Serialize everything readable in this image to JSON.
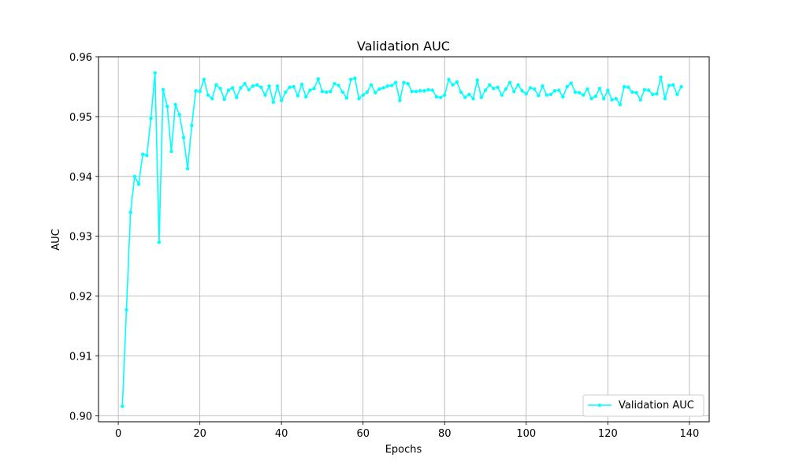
{
  "chart_data": {
    "type": "line",
    "title": "Validation AUC",
    "xlabel": "Epochs",
    "ylabel": "AUC",
    "xlim": [
      -4.85,
      144.85
    ],
    "ylim": [
      0.899,
      0.96
    ],
    "xticks": [
      0,
      20,
      40,
      60,
      80,
      100,
      120,
      140
    ],
    "yticks": [
      0.9,
      0.91,
      0.92,
      0.93,
      0.94,
      0.95,
      0.96
    ],
    "ytick_labels": [
      "0.90",
      "0.91",
      "0.92",
      "0.93",
      "0.94",
      "0.95",
      "0.96"
    ],
    "grid": true,
    "legend_position": "lower-right",
    "series": [
      {
        "name": "Validation AUC",
        "color": "#00ffff",
        "x": [
          1,
          2,
          3,
          4,
          5,
          6,
          7,
          8,
          9,
          10,
          11,
          12,
          13,
          14,
          15,
          16,
          17,
          18,
          19,
          20,
          21,
          22,
          23,
          24,
          25,
          26,
          27,
          28,
          29,
          30,
          31,
          32,
          33,
          34,
          35,
          36,
          37,
          38,
          39,
          40,
          41,
          42,
          43,
          44,
          45,
          46,
          47,
          48,
          49,
          50,
          51,
          52,
          53,
          54,
          55,
          56,
          57,
          58,
          59,
          60,
          61,
          62,
          63,
          64,
          65,
          66,
          67,
          68,
          69,
          70,
          71,
          72,
          73,
          74,
          75,
          76,
          77,
          78,
          79,
          80,
          81,
          82,
          83,
          84,
          85,
          86,
          87,
          88,
          89,
          90,
          91,
          92,
          93,
          94,
          95,
          96,
          97,
          98,
          99,
          100,
          101,
          102,
          103,
          104,
          105,
          106,
          107,
          108,
          109,
          110,
          111,
          112,
          113,
          114,
          115,
          116,
          117,
          118,
          119,
          120,
          121,
          122,
          123,
          124,
          125,
          126,
          127,
          128,
          129,
          130,
          131,
          132,
          133,
          134,
          135,
          136,
          137,
          138
        ],
        "values": [
          0.9016,
          0.9177,
          0.934,
          0.94,
          0.9387,
          0.9437,
          0.9435,
          0.9497,
          0.9573,
          0.929,
          0.9545,
          0.9517,
          0.9442,
          0.952,
          0.9503,
          0.9465,
          0.9413,
          0.9485,
          0.9543,
          0.9542,
          0.9562,
          0.9536,
          0.953,
          0.9553,
          0.9547,
          0.9529,
          0.9544,
          0.9548,
          0.9532,
          0.9548,
          0.9555,
          0.9545,
          0.9551,
          0.9553,
          0.9549,
          0.9536,
          0.9551,
          0.9524,
          0.9551,
          0.9527,
          0.9541,
          0.9549,
          0.955,
          0.9535,
          0.9554,
          0.9533,
          0.9544,
          0.9547,
          0.9563,
          0.9542,
          0.9541,
          0.9542,
          0.9555,
          0.9552,
          0.9541,
          0.9531,
          0.9562,
          0.9564,
          0.953,
          0.9536,
          0.9541,
          0.9553,
          0.954,
          0.9546,
          0.9548,
          0.9551,
          0.9552,
          0.9557,
          0.9527,
          0.9557,
          0.9555,
          0.9542,
          0.9542,
          0.9543,
          0.9543,
          0.9545,
          0.9544,
          0.9533,
          0.9532,
          0.9536,
          0.9562,
          0.9553,
          0.9558,
          0.9541,
          0.9532,
          0.9537,
          0.953,
          0.9561,
          0.9532,
          0.9544,
          0.9553,
          0.9547,
          0.9549,
          0.9536,
          0.9546,
          0.9557,
          0.9542,
          0.9553,
          0.9543,
          0.9538,
          0.9548,
          0.9546,
          0.9535,
          0.9551,
          0.9536,
          0.9537,
          0.9543,
          0.9544,
          0.9533,
          0.955,
          0.9556,
          0.9541,
          0.954,
          0.9536,
          0.9546,
          0.953,
          0.9534,
          0.9547,
          0.953,
          0.9544,
          0.9528,
          0.953,
          0.952,
          0.955,
          0.9549,
          0.9541,
          0.954,
          0.9528,
          0.9545,
          0.9544,
          0.9537,
          0.9538,
          0.9566,
          0.953,
          0.9552,
          0.9553,
          0.9537,
          0.955
        ]
      }
    ]
  }
}
